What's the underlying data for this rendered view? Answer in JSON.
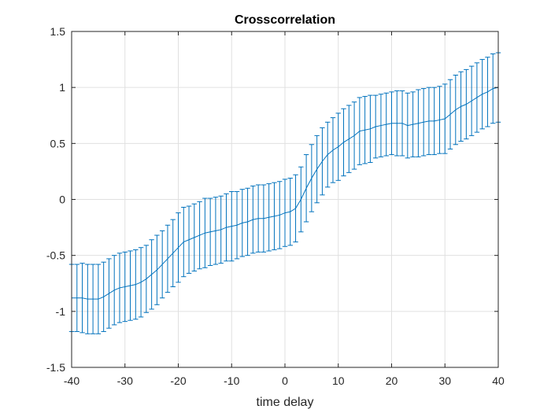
{
  "chart_data": {
    "type": "line",
    "subtype": "errorbar",
    "title": "Crosscorrelation",
    "xlabel": "time delay",
    "ylabel": "",
    "xlim": [
      -40,
      40
    ],
    "ylim": [
      -1.5,
      1.5
    ],
    "xticks": [
      -40,
      -30,
      -20,
      -10,
      0,
      10,
      20,
      30,
      40
    ],
    "xtick_labels": [
      "-40",
      "-30",
      "-20",
      "-10",
      "0",
      "10",
      "20",
      "30",
      "40"
    ],
    "yticks": [
      -1.5,
      -1,
      -0.5,
      0,
      0.5,
      1,
      1.5
    ],
    "ytick_labels": [
      "-1.5",
      "-1",
      "-0.5",
      "0",
      "0.5",
      "1",
      "1.5"
    ],
    "grid": true,
    "box": true,
    "colors": {
      "series": "#0072bd",
      "grid": "#e0e0e0",
      "axes": "#262626"
    },
    "series": [
      {
        "x": [
          -40,
          -39,
          -38,
          -37,
          -36,
          -35,
          -34,
          -33,
          -32,
          -31,
          -30,
          -29,
          -28,
          -27,
          -26,
          -25,
          -24,
          -23,
          -22,
          -21,
          -20,
          -19,
          -18,
          -17,
          -16,
          -15,
          -14,
          -13,
          -12,
          -11,
          -10,
          -9,
          -8,
          -7,
          -6,
          -5,
          -4,
          -3,
          -2,
          -1,
          0,
          1,
          2,
          3,
          4,
          5,
          6,
          7,
          8,
          9,
          10,
          11,
          12,
          13,
          14,
          15,
          16,
          17,
          18,
          19,
          20,
          21,
          22,
          23,
          24,
          25,
          26,
          27,
          28,
          29,
          30,
          31,
          32,
          33,
          34,
          35,
          36,
          37,
          38,
          39,
          40
        ],
        "y": [
          -0.88,
          -0.88,
          -0.88,
          -0.89,
          -0.89,
          -0.89,
          -0.87,
          -0.84,
          -0.81,
          -0.79,
          -0.78,
          -0.77,
          -0.76,
          -0.74,
          -0.71,
          -0.67,
          -0.63,
          -0.58,
          -0.53,
          -0.48,
          -0.43,
          -0.38,
          -0.36,
          -0.34,
          -0.32,
          -0.3,
          -0.29,
          -0.28,
          -0.27,
          -0.25,
          -0.24,
          -0.23,
          -0.21,
          -0.2,
          -0.18,
          -0.17,
          -0.17,
          -0.16,
          -0.15,
          -0.14,
          -0.12,
          -0.11,
          -0.08,
          0.0,
          0.1,
          0.19,
          0.27,
          0.34,
          0.4,
          0.44,
          0.47,
          0.51,
          0.54,
          0.57,
          0.61,
          0.62,
          0.63,
          0.65,
          0.66,
          0.67,
          0.68,
          0.68,
          0.68,
          0.66,
          0.67,
          0.68,
          0.69,
          0.7,
          0.7,
          0.71,
          0.72,
          0.76,
          0.8,
          0.83,
          0.85,
          0.88,
          0.91,
          0.94,
          0.96,
          0.99,
          1.0
        ],
        "err": [
          0.3,
          0.3,
          0.31,
          0.31,
          0.31,
          0.31,
          0.31,
          0.31,
          0.31,
          0.31,
          0.31,
          0.31,
          0.31,
          0.31,
          0.3,
          0.31,
          0.31,
          0.3,
          0.3,
          0.3,
          0.31,
          0.31,
          0.3,
          0.3,
          0.3,
          0.31,
          0.3,
          0.3,
          0.3,
          0.3,
          0.31,
          0.3,
          0.3,
          0.3,
          0.3,
          0.3,
          0.3,
          0.3,
          0.3,
          0.3,
          0.3,
          0.3,
          0.3,
          0.29,
          0.3,
          0.3,
          0.3,
          0.3,
          0.29,
          0.29,
          0.3,
          0.3,
          0.3,
          0.3,
          0.3,
          0.3,
          0.3,
          0.28,
          0.28,
          0.28,
          0.28,
          0.29,
          0.29,
          0.29,
          0.29,
          0.3,
          0.3,
          0.3,
          0.3,
          0.3,
          0.31,
          0.31,
          0.31,
          0.31,
          0.31,
          0.31,
          0.31,
          0.31,
          0.31,
          0.31,
          0.31
        ]
      }
    ]
  }
}
